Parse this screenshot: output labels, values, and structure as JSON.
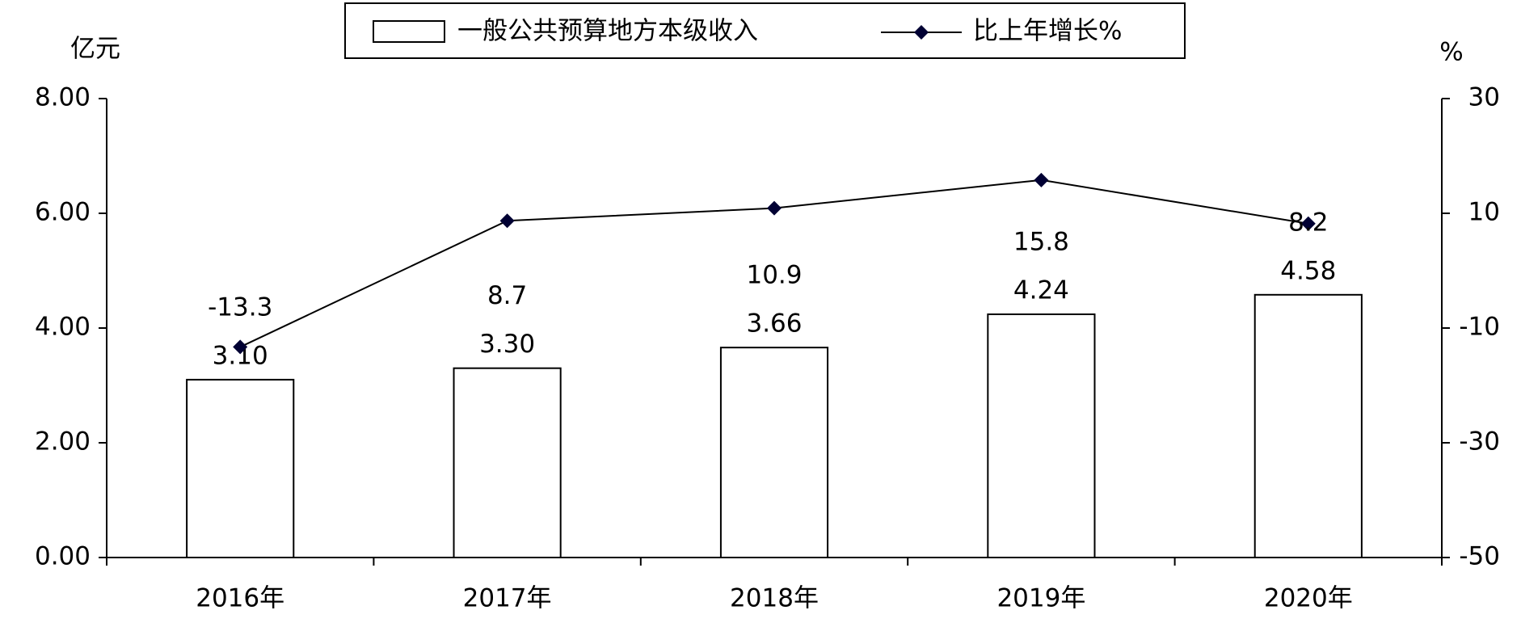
{
  "chart_data": {
    "type": "bar-line",
    "y_axis_label": "亿元",
    "y2_axis_label": "%",
    "categories": [
      "2016年",
      "2017年",
      "2018年",
      "2019年",
      "2020年"
    ],
    "series": [
      {
        "name": "一般公共预算地方本级收入",
        "type": "bar",
        "color": "#ffffff",
        "values": [
          3.1,
          3.3,
          3.66,
          4.24,
          4.58
        ],
        "value_labels": [
          "3.10",
          "3.30",
          "3.66",
          "4.24",
          "4.58"
        ]
      },
      {
        "name": "比上年增长%",
        "type": "line",
        "axis": "y2",
        "color": "#000033",
        "values": [
          -13.3,
          8.7,
          10.9,
          15.8,
          8.2
        ]
      }
    ],
    "ylim": [
      0,
      8
    ],
    "yticks": [
      {
        "value": 0,
        "label": "0.00"
      },
      {
        "value": 2,
        "label": "2.00"
      },
      {
        "value": 4,
        "label": "4.00"
      },
      {
        "value": 6,
        "label": "6.00"
      },
      {
        "value": 8,
        "label": "8.00"
      }
    ],
    "y2lim": [
      -50,
      30
    ],
    "y2ticks": [
      -50,
      -30,
      -10,
      10,
      30
    ],
    "legend": "top"
  }
}
